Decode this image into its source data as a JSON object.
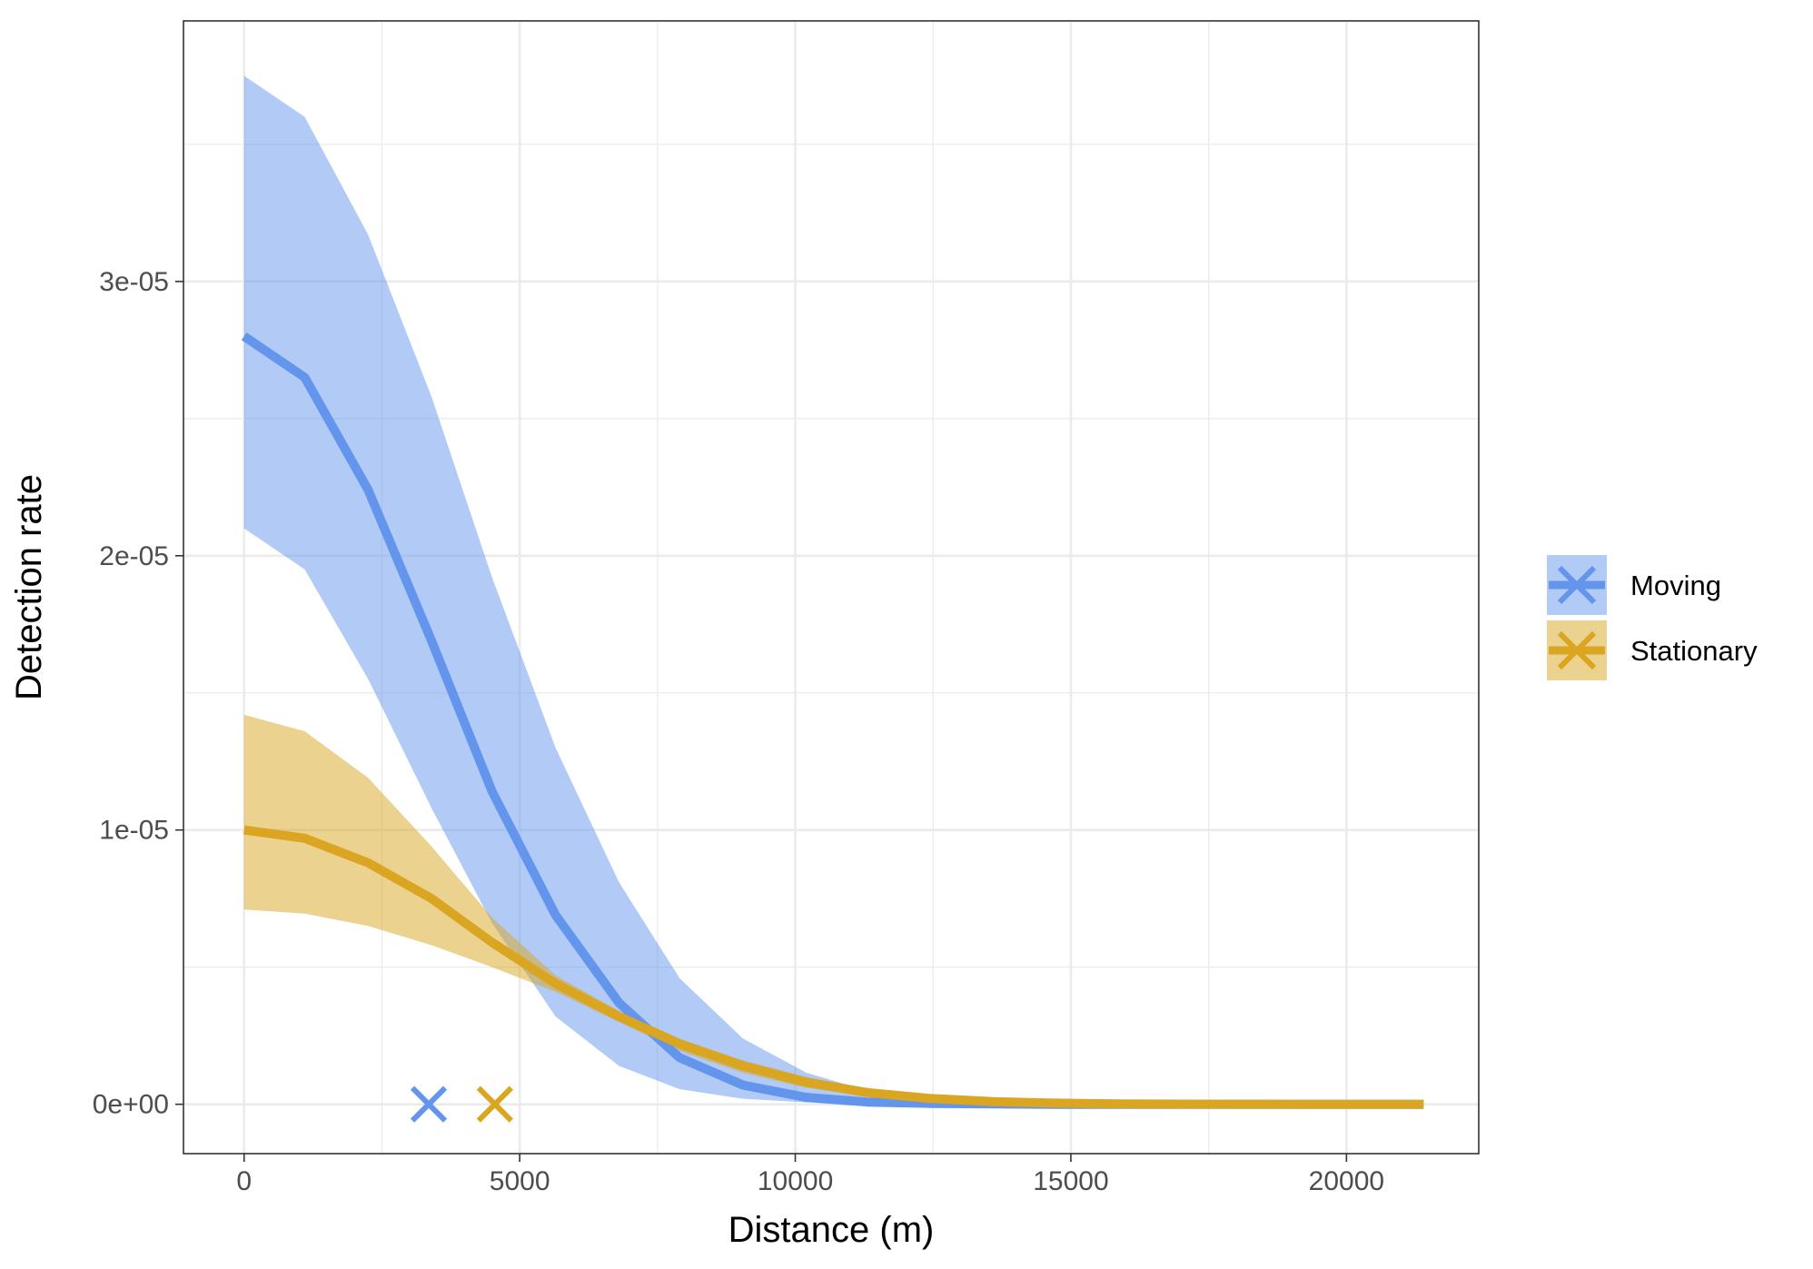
{
  "chart_data": {
    "type": "line",
    "title": "",
    "xlabel": "Distance (m)",
    "ylabel": "Detection rate",
    "xlim": [
      -1100,
      22400
    ],
    "ylim": [
      -1.8e-06,
      3.95e-05
    ],
    "xticks": [
      {
        "value": 0,
        "label": "0"
      },
      {
        "value": 5000,
        "label": "5000"
      },
      {
        "value": 10000,
        "label": "10000"
      },
      {
        "value": 15000,
        "label": "15000"
      },
      {
        "value": 20000,
        "label": "20000"
      }
    ],
    "xminor": [
      2500,
      7500,
      12500,
      17500
    ],
    "yticks": [
      {
        "value": 0,
        "label": "0e+00"
      },
      {
        "value": 1e-05,
        "label": "1e-05"
      },
      {
        "value": 2e-05,
        "label": "2e-05"
      },
      {
        "value": 3e-05,
        "label": "3e-05"
      }
    ],
    "yminor": [
      5e-06,
      1.5e-05,
      2.5e-05,
      3.5e-05
    ],
    "grid": true,
    "legend_position": "right",
    "x": [
      0,
      1100,
      2250,
      3400,
      4500,
      5650,
      6800,
      7900,
      9050,
      10200,
      11300,
      12450,
      13600,
      14700,
      15850,
      17000,
      18100,
      19250,
      20350,
      21400
    ],
    "series": [
      {
        "name": "Moving",
        "color": "#6495ED",
        "ribbon_color": "#6495ED",
        "values": [
          2.8e-05,
          2.65e-05,
          2.24e-05,
          1.69e-05,
          1.14e-05,
          6.9e-06,
          3.7e-06,
          1.7e-06,
          7e-07,
          2.5e-07,
          8e-08,
          3e-08,
          1e-08,
          0,
          0,
          0,
          0,
          0,
          0,
          0
        ],
        "lower": [
          2.1e-05,
          1.95e-05,
          1.55e-05,
          1.08e-05,
          6.6e-06,
          3.2e-06,
          1.4e-06,
          5.5e-07,
          2e-07,
          7e-08,
          2e-08,
          0,
          0,
          0,
          0,
          0,
          0,
          0,
          0,
          0
        ],
        "upper": [
          3.75e-05,
          3.6e-05,
          3.17e-05,
          2.58e-05,
          1.92e-05,
          1.3e-05,
          8.1e-06,
          4.6e-06,
          2.4e-06,
          1.15e-06,
          5e-07,
          2e-07,
          8e-08,
          3e-08,
          1e-08,
          0,
          0,
          0,
          0,
          0
        ],
        "marker_x": 3350
      },
      {
        "name": "Stationary",
        "color": "#DAA520",
        "ribbon_color": "#DAA520",
        "values": [
          1e-05,
          9.7e-06,
          8.8e-06,
          7.5e-06,
          5.9e-06,
          4.4e-06,
          3.2e-06,
          2.2e-06,
          1.4e-06,
          8e-07,
          4.3e-07,
          2.1e-07,
          9.5e-08,
          4e-08,
          1.5e-08,
          5e-09,
          2e-09,
          0,
          0,
          0
        ],
        "lower": [
          7.1e-06,
          6.95e-06,
          6.5e-06,
          5.8e-06,
          5e-06,
          4.1e-06,
          3e-06,
          1.95e-06,
          1.15e-06,
          6e-07,
          3e-07,
          1.4e-07,
          6e-08,
          2.5e-08,
          9e-09,
          3e-09,
          1e-09,
          0,
          0,
          0
        ],
        "upper": [
          1.42e-05,
          1.36e-05,
          1.19e-05,
          9.4e-06,
          6.8e-06,
          4.7e-06,
          3.4e-06,
          2.4e-06,
          1.6e-06,
          1e-06,
          5.8e-07,
          3e-07,
          1.4e-07,
          6e-08,
          2.4e-08,
          9e-09,
          3e-09,
          1e-09,
          0,
          0
        ],
        "marker_x": 4550
      }
    ]
  }
}
